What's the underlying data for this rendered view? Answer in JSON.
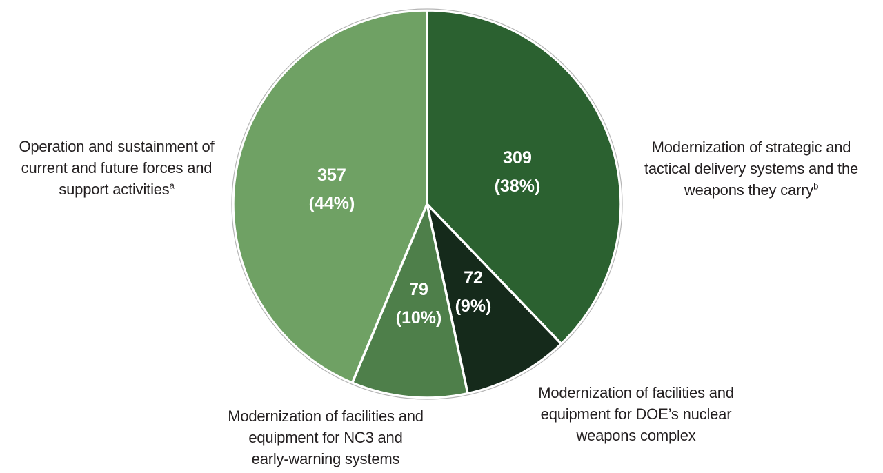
{
  "chart_data": {
    "type": "pie",
    "start_angle_deg": 0,
    "direction": "clockwise",
    "legend": "none",
    "slices": [
      {
        "id": "delivery-systems",
        "value": 309,
        "value_label": "309",
        "pct_label": "(38%)",
        "color": "#2B6130",
        "category": "Modernization of strategic and tactical delivery systems and the weapons they carry",
        "category_sup": "b"
      },
      {
        "id": "doe-weapons-complex",
        "value": 72,
        "value_label": "72",
        "pct_label": "(9%)",
        "color": "#152A1B",
        "category": "Modernization of facilities and equipment for DOE’s nuclear weapons complex",
        "category_sup": ""
      },
      {
        "id": "nc3-early-warning",
        "value": 79,
        "value_label": "79",
        "pct_label": "(10%)",
        "color": "#4E7F4A",
        "category": "Modernization of facilities and equipment for NC3 and early-warning systems",
        "category_sup": ""
      },
      {
        "id": "operation-sustainment",
        "value": 357,
        "value_label": "357",
        "pct_label": "(44%)",
        "color": "#6FA164",
        "category": "Operation and sustainment of current and future forces and support activities",
        "category_sup": "a"
      }
    ]
  },
  "annotations": {
    "left": {
      "lines": [
        "Operation and sustainment of",
        "current and future forces and",
        "support activities"
      ],
      "sup": "a"
    },
    "right": {
      "lines": [
        "Modernization of strategic and",
        "tactical delivery systems and the",
        "weapons they carry"
      ],
      "sup": "b"
    },
    "bottom_left": {
      "lines": [
        "Modernization of facilities and",
        "equipment for NC3 and",
        "early-warning systems"
      ],
      "sup": ""
    },
    "bottom_right": {
      "lines": [
        "Modernization of facilities and",
        "equipment for DOE’s nuclear",
        "weapons complex"
      ],
      "sup": ""
    }
  },
  "colors": {
    "background": "#FFFFFF",
    "annotation_text": "#231F20",
    "slice_value_text": "#FFFFFF",
    "slice_border": "#FFFFFF",
    "pie_outline": "#B5B5B5"
  }
}
